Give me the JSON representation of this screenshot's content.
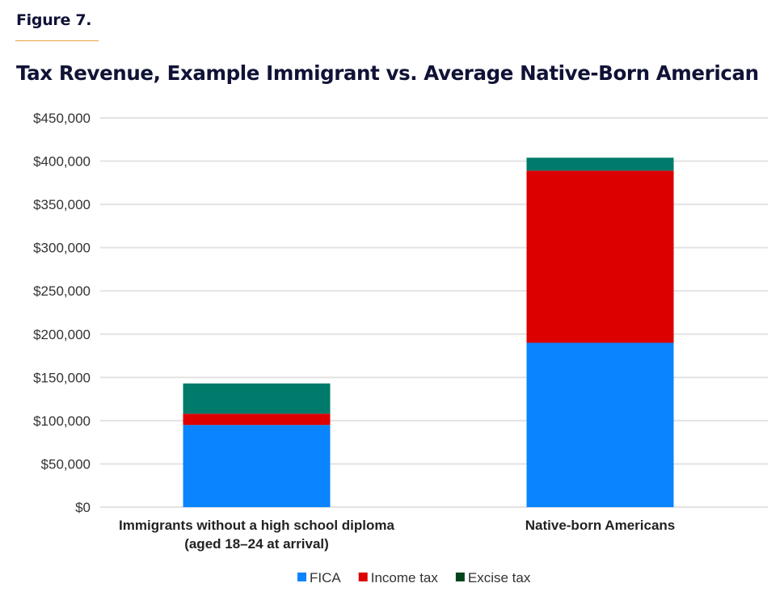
{
  "figure_label": "Figure 7.",
  "chart_data": {
    "type": "bar",
    "stacked": true,
    "title": "Tax Revenue, Example Immigrant vs. Average Native-Born American",
    "xlabel": "",
    "ylabel": "",
    "ylim": [
      0,
      450000
    ],
    "yticks": [
      0,
      50000,
      100000,
      150000,
      200000,
      250000,
      300000,
      350000,
      400000,
      450000
    ],
    "ytick_labels": [
      "$0",
      "$50,000",
      "$100,000",
      "$150,000",
      "$200,000",
      "$250,000",
      "$300,000",
      "$350,000",
      "$400,000",
      "$450,000"
    ],
    "grid": true,
    "categories": [
      [
        "Immigrants without a high school diploma",
        "(aged 18–24 at arrival)"
      ],
      [
        "Native-born Americans"
      ]
    ],
    "series": [
      {
        "name": "FICA",
        "color": "#0a84ff",
        "values": [
          95000,
          190000
        ]
      },
      {
        "name": "Income tax",
        "color": "#dc0000",
        "values": [
          13000,
          199000
        ]
      },
      {
        "name": "Excise tax",
        "color": "#007a6a",
        "legend_color": "#00441b",
        "values": [
          35000,
          15000
        ]
      }
    ],
    "legend_position": "bottom-center"
  }
}
